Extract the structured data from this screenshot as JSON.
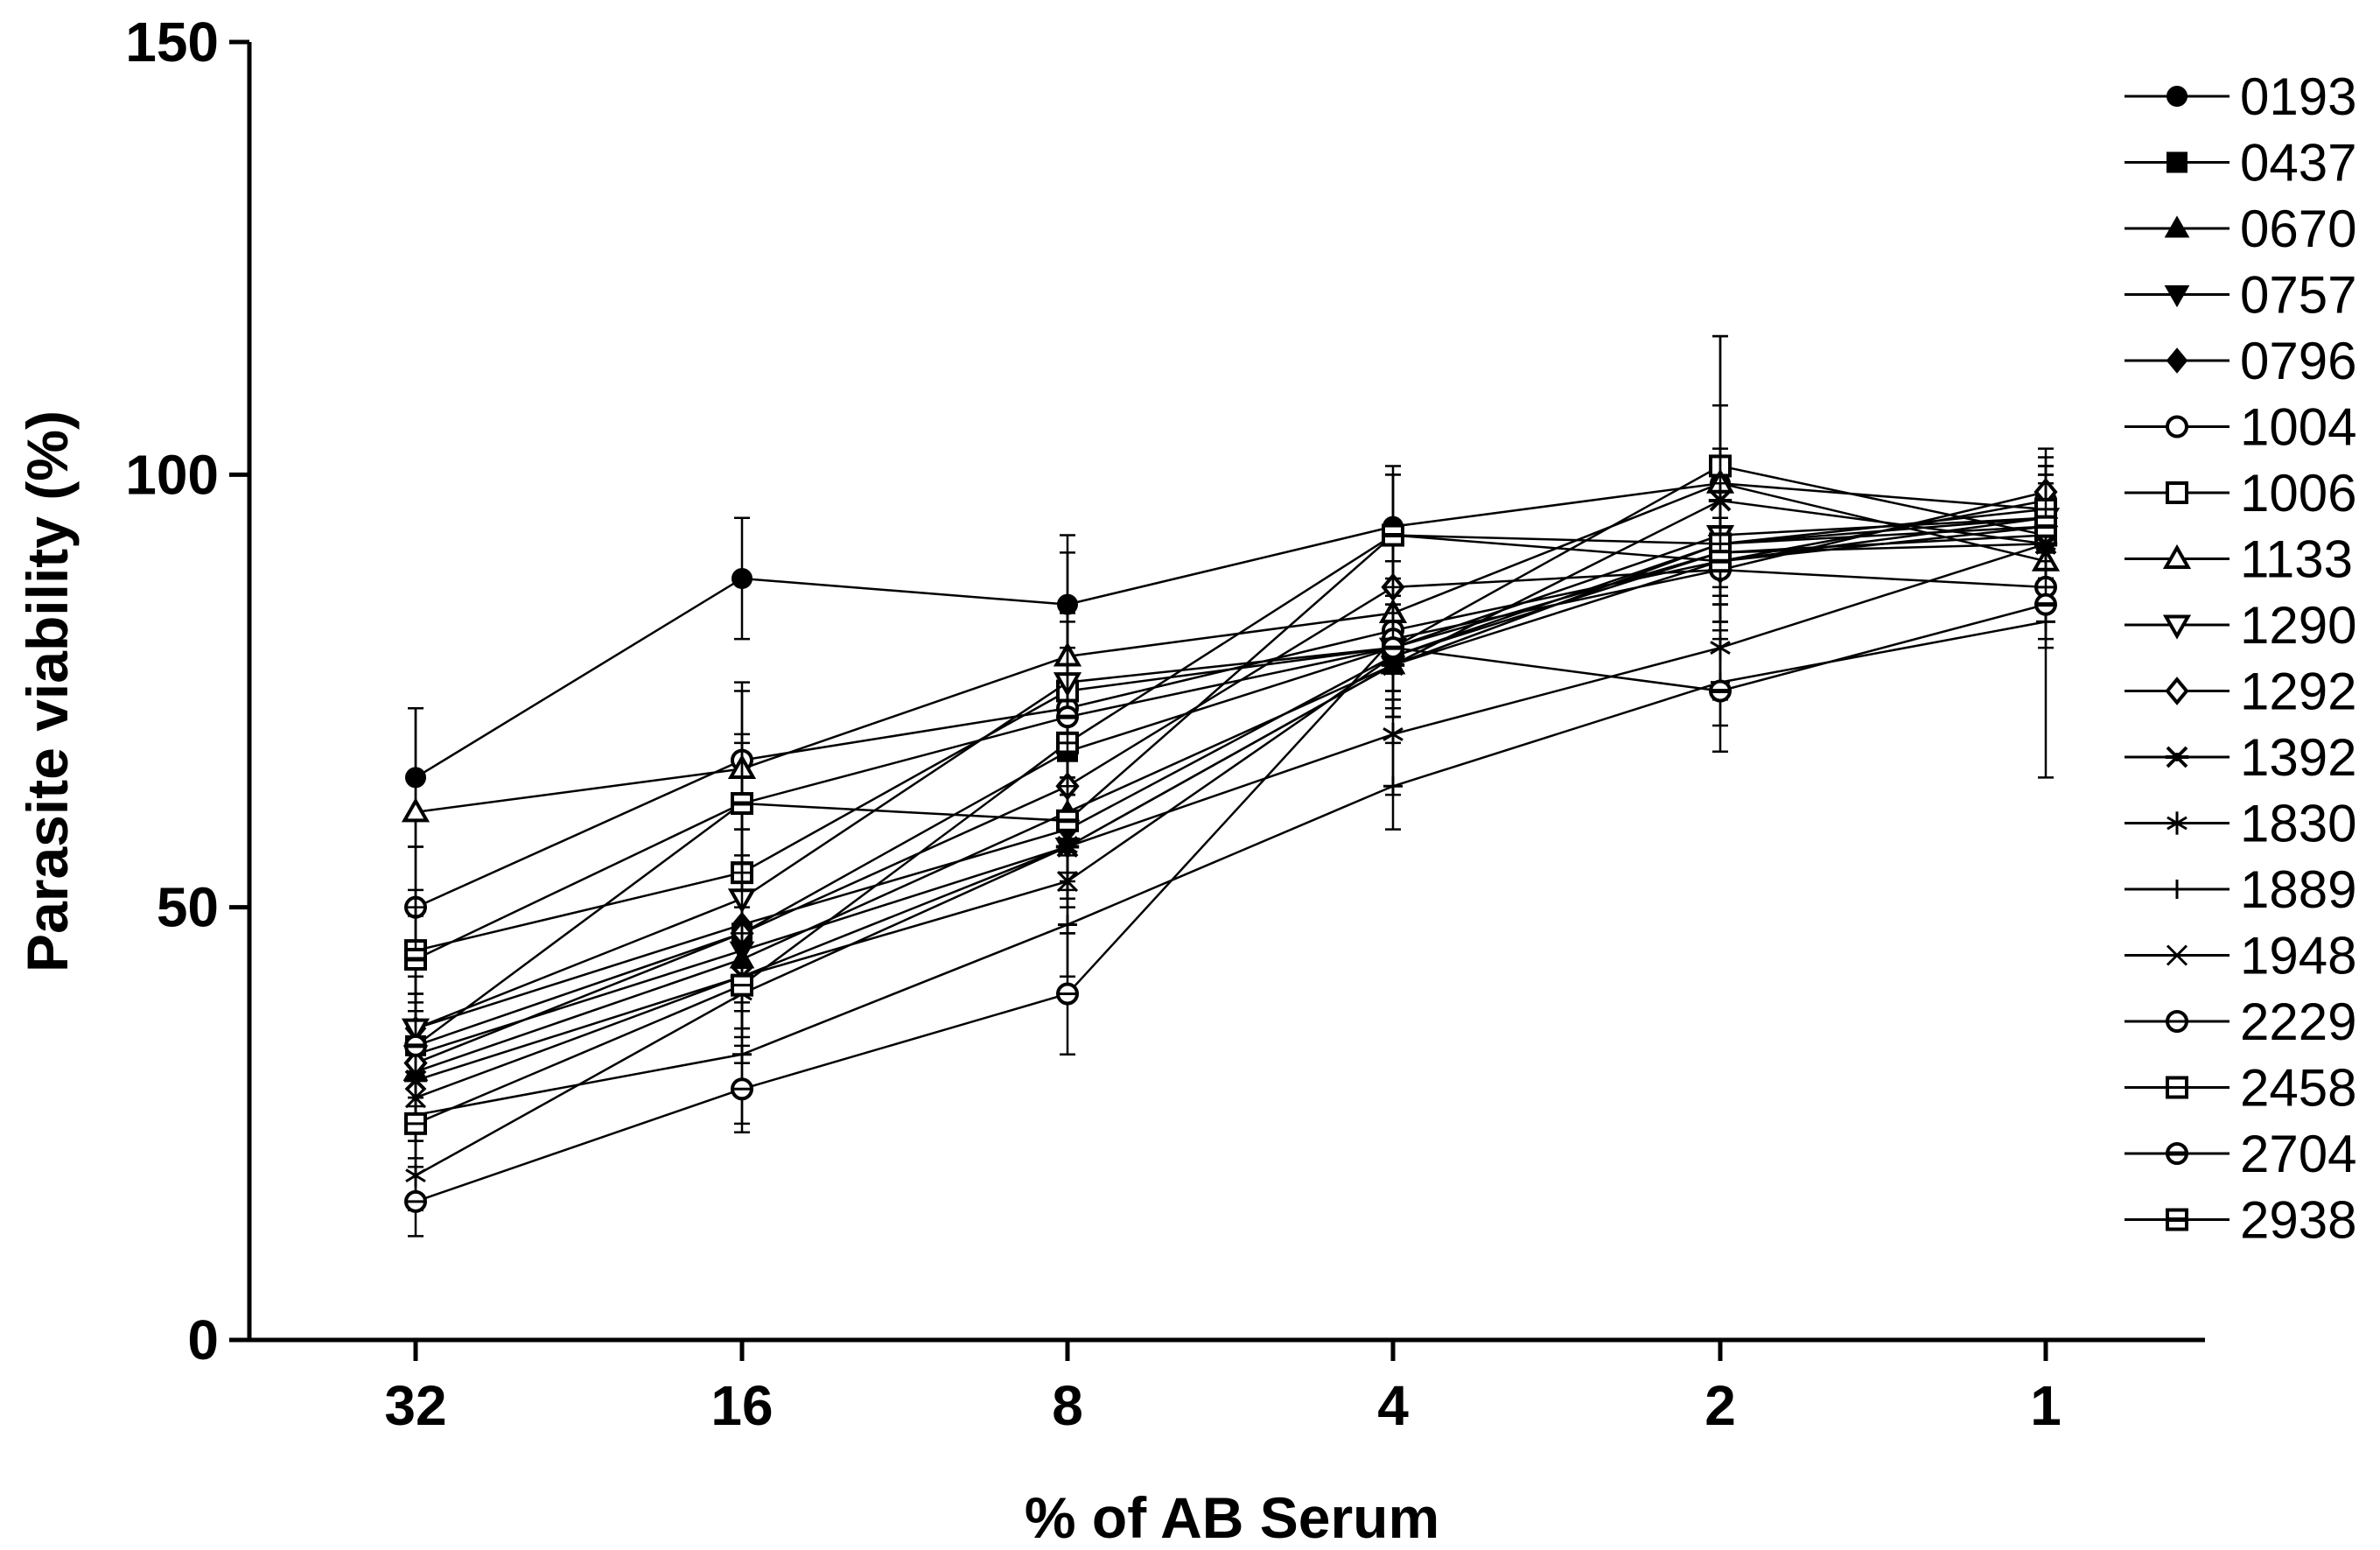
{
  "chart_data": {
    "type": "line",
    "title": "",
    "xlabel": "% of AB Serum",
    "ylabel": "Parasite viability (%)",
    "categories": [
      "32",
      "16",
      "8",
      "4",
      "2",
      "1"
    ],
    "ylim": [
      0,
      150
    ],
    "yticks": [
      "0",
      "50",
      "100",
      "150"
    ],
    "grid": false,
    "legend_position": "right",
    "series": [
      {
        "name": "0193",
        "marker": "circle-filled",
        "values": [
          65,
          88,
          85,
          94,
          99,
          96
        ],
        "errors": [
          8,
          7,
          8,
          7,
          9,
          5
        ]
      },
      {
        "name": "0437",
        "marker": "square-filled",
        "values": [
          34,
          47,
          68,
          80,
          91,
          93
        ],
        "errors": [
          6,
          6,
          7,
          7,
          6,
          5
        ]
      },
      {
        "name": "0670",
        "marker": "triangle-filled",
        "values": [
          31,
          44,
          61,
          78,
          90,
          95
        ],
        "errors": [
          5,
          6,
          7,
          6,
          7,
          5
        ]
      },
      {
        "name": "0757",
        "marker": "triangle-down-filled",
        "values": [
          33,
          45,
          57,
          78,
          92,
          94
        ],
        "errors": [
          6,
          6,
          7,
          6,
          7,
          6
        ]
      },
      {
        "name": "0796",
        "marker": "diamond-filled",
        "values": [
          36,
          48,
          59,
          79,
          91,
          92
        ],
        "errors": [
          6,
          6,
          6,
          6,
          6,
          5
        ]
      },
      {
        "name": "1004",
        "marker": "circle-open",
        "values": [
          50,
          67,
          73,
          82,
          90,
          97
        ],
        "errors": [
          7,
          8,
          10,
          8,
          7,
          5
        ]
      },
      {
        "name": "1006",
        "marker": "square-open",
        "values": [
          45,
          54,
          75,
          80,
          101,
          93
        ],
        "errors": [
          7,
          8,
          10,
          8,
          15,
          5
        ]
      },
      {
        "name": "1133",
        "marker": "triangle-open",
        "values": [
          61,
          66,
          79,
          84,
          99,
          90
        ],
        "errors": [
          12,
          10,
          12,
          9,
          17,
          5
        ]
      },
      {
        "name": "1290",
        "marker": "triangle-down-open",
        "values": [
          36,
          51,
          76,
          80,
          93,
          95
        ],
        "errors": [
          6,
          8,
          8,
          7,
          6,
          5
        ]
      },
      {
        "name": "1292",
        "marker": "diamond-open",
        "values": [
          32,
          47,
          64,
          87,
          89,
          98
        ],
        "errors": [
          6,
          7,
          8,
          7,
          6,
          5
        ]
      },
      {
        "name": "1392",
        "marker": "star-filled",
        "values": [
          30,
          42,
          57,
          78,
          97,
          92
        ],
        "errors": [
          5,
          6,
          6,
          6,
          6,
          5
        ]
      },
      {
        "name": "1830",
        "marker": "star6",
        "values": [
          19,
          40,
          57,
          70,
          80,
          92
        ],
        "errors": [
          4,
          8,
          6,
          7,
          6,
          5
        ]
      },
      {
        "name": "1889",
        "marker": "plus",
        "values": [
          26,
          33,
          48,
          64,
          76,
          83
        ],
        "errors": [
          5,
          8,
          6,
          5,
          5,
          18
        ]
      },
      {
        "name": "1948",
        "marker": "cross",
        "values": [
          28,
          42,
          53,
          79,
          92,
          95
        ],
        "errors": [
          5,
          6,
          6,
          6,
          6,
          5
        ]
      },
      {
        "name": "2229",
        "marker": "circle-dot",
        "values": [
          16,
          29,
          40,
          81,
          89,
          87
        ],
        "errors": [
          4,
          5,
          7,
          6,
          6,
          6
        ]
      },
      {
        "name": "2458",
        "marker": "square-dot",
        "values": [
          25,
          41,
          69,
          93,
          92,
          96
        ],
        "errors": [
          5,
          6,
          8,
          7,
          7,
          5
        ]
      },
      {
        "name": "2704",
        "marker": "circle-dot-bold",
        "values": [
          34,
          62,
          72,
          80,
          75,
          85
        ],
        "errors": [
          6,
          7,
          8,
          6,
          7,
          5
        ]
      },
      {
        "name": "2938",
        "marker": "square-dot-bold",
        "values": [
          44,
          62,
          60,
          93,
          90,
          94
        ],
        "errors": [
          6,
          8,
          8,
          7,
          7,
          5
        ]
      }
    ]
  }
}
